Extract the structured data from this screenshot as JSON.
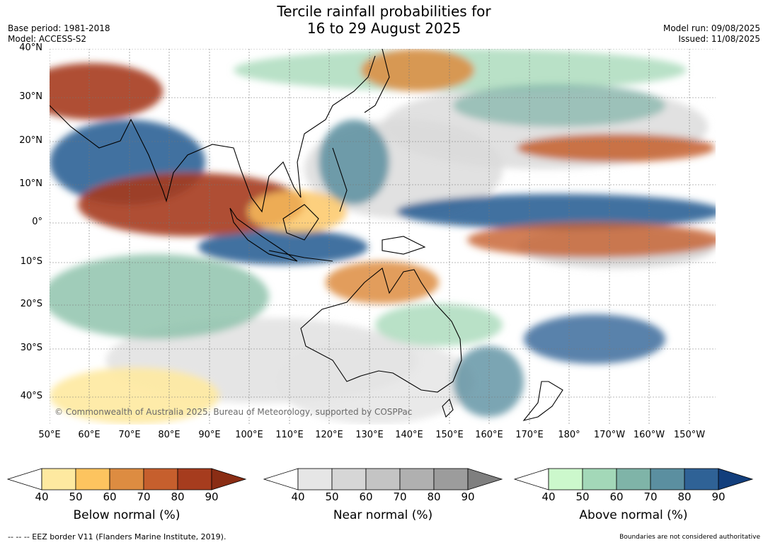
{
  "title_line1": "Tercile rainfall probabilities for",
  "title_line2": "16 to 29 August 2025",
  "base_period": "Base period: 1981-2018",
  "model": "Model: ACCESS-S2",
  "model_run": "Model run: 09/08/2025",
  "issued": "Issued: 11/08/2025",
  "copyright": "© Commonwealth of Australia 2025, Bureau of Meteorology, supported by COSPPac",
  "lat_labels": [
    "40°N",
    "30°N",
    "20°N",
    "10°N",
    "0°",
    "10°S",
    "20°S",
    "30°S",
    "40°S"
  ],
  "lon_labels": [
    "50°E",
    "60°E",
    "70°E",
    "80°E",
    "90°E",
    "100°E",
    "110°E",
    "120°E",
    "130°E",
    "140°E",
    "150°E",
    "160°E",
    "170°E",
    "180°",
    "170°W",
    "160°W",
    "150°W"
  ],
  "colorbars": [
    {
      "title": "Below normal (%)",
      "ticks": [
        "40",
        "50",
        "60",
        "70",
        "80",
        "90"
      ],
      "colors": [
        "#ffffff",
        "#fee9a0",
        "#fdc45f",
        "#dd8c41",
        "#c65f2d",
        "#a63c1e",
        "#8a2d14"
      ]
    },
    {
      "title": "Near normal (%)",
      "ticks": [
        "40",
        "50",
        "60",
        "70",
        "80",
        "90"
      ],
      "colors": [
        "#ffffff",
        "#e6e6e6",
        "#d6d6d6",
        "#c4c4c4",
        "#b0b0b0",
        "#9c9c9c",
        "#7f7f7f"
      ]
    },
    {
      "title": "Above normal (%)",
      "ticks": [
        "40",
        "50",
        "60",
        "70",
        "80",
        "90"
      ],
      "colors": [
        "#ffffff",
        "#ccf8cc",
        "#a3d8b8",
        "#7fb4a8",
        "#5b8fa0",
        "#2f6296",
        "#123e7c"
      ]
    }
  ],
  "footer_left": "--  --  -- EEZ border V11 (Flanders Marine Institute, 2019).",
  "footer_right": "Boundaries are not considered authoritative"
}
